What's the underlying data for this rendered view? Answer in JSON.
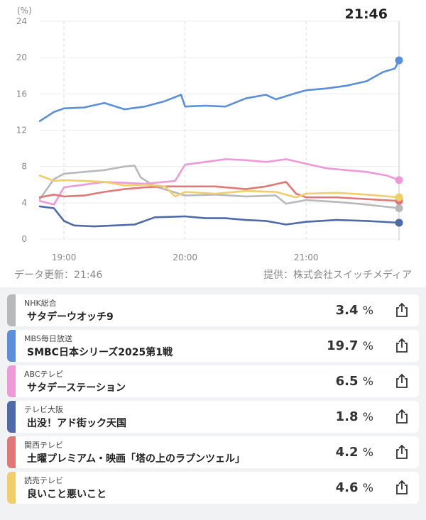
{
  "header": {
    "current_time": "21:46"
  },
  "footer": {
    "updated": "データ更新：21:46",
    "provider": "提供：株式会社スイッチメディア"
  },
  "chart_data": {
    "type": "line",
    "unit_label": "(%)",
    "ylim": [
      0,
      24
    ],
    "y_ticks": [
      0,
      4,
      8,
      12,
      16,
      20,
      24
    ],
    "xlim": [
      "18:48",
      "21:46"
    ],
    "x_ticks": [
      "19:00",
      "20:00",
      "21:00"
    ],
    "grid": true,
    "series": [
      {
        "name": "NHK総合",
        "color": "#b8b9bb",
        "points": [
          [
            "18:48",
            4.4
          ],
          [
            "18:55",
            6.6
          ],
          [
            "19:00",
            7.2
          ],
          [
            "19:10",
            7.4
          ],
          [
            "19:20",
            7.6
          ],
          [
            "19:30",
            8.0
          ],
          [
            "19:35",
            8.1
          ],
          [
            "19:38",
            6.8
          ],
          [
            "19:45",
            5.8
          ],
          [
            "20:00",
            4.8
          ],
          [
            "20:15",
            4.9
          ],
          [
            "20:30",
            4.7
          ],
          [
            "20:45",
            4.8
          ],
          [
            "20:50",
            3.9
          ],
          [
            "21:00",
            4.3
          ],
          [
            "21:15",
            4.1
          ],
          [
            "21:30",
            3.8
          ],
          [
            "21:46",
            3.4
          ]
        ]
      },
      {
        "name": "MBS毎日放送",
        "color": "#5b8fd9",
        "points": [
          [
            "18:48",
            13.0
          ],
          [
            "18:55",
            14.0
          ],
          [
            "19:00",
            14.4
          ],
          [
            "19:10",
            14.5
          ],
          [
            "19:20",
            15.0
          ],
          [
            "19:30",
            14.3
          ],
          [
            "19:40",
            14.6
          ],
          [
            "19:50",
            15.2
          ],
          [
            "19:58",
            15.9
          ],
          [
            "20:00",
            14.6
          ],
          [
            "20:10",
            14.7
          ],
          [
            "20:20",
            14.6
          ],
          [
            "20:30",
            15.5
          ],
          [
            "20:40",
            15.9
          ],
          [
            "20:45",
            15.4
          ],
          [
            "20:55",
            16.1
          ],
          [
            "21:00",
            16.4
          ],
          [
            "21:10",
            16.6
          ],
          [
            "21:20",
            16.9
          ],
          [
            "21:30",
            17.4
          ],
          [
            "21:38",
            18.4
          ],
          [
            "21:44",
            18.8
          ],
          [
            "21:46",
            19.7
          ]
        ]
      },
      {
        "name": "ABCテレビ",
        "color": "#ef9ad8",
        "points": [
          [
            "18:48",
            4.2
          ],
          [
            "18:55",
            3.8
          ],
          [
            "19:00",
            5.7
          ],
          [
            "19:10",
            6.0
          ],
          [
            "19:20",
            6.3
          ],
          [
            "19:30",
            6.2
          ],
          [
            "19:40",
            6.1
          ],
          [
            "19:55",
            6.4
          ],
          [
            "20:00",
            8.2
          ],
          [
            "20:10",
            8.5
          ],
          [
            "20:20",
            8.8
          ],
          [
            "20:30",
            8.7
          ],
          [
            "20:40",
            8.5
          ],
          [
            "20:50",
            8.8
          ],
          [
            "21:00",
            8.3
          ],
          [
            "21:10",
            7.8
          ],
          [
            "21:20",
            7.6
          ],
          [
            "21:30",
            7.4
          ],
          [
            "21:40",
            7.0
          ],
          [
            "21:46",
            6.5
          ]
        ]
      },
      {
        "name": "テレビ大阪",
        "color": "#4e6aa8",
        "points": [
          [
            "18:48",
            3.6
          ],
          [
            "18:55",
            3.4
          ],
          [
            "19:00",
            2.0
          ],
          [
            "19:05",
            1.5
          ],
          [
            "19:15",
            1.4
          ],
          [
            "19:25",
            1.5
          ],
          [
            "19:35",
            1.6
          ],
          [
            "19:45",
            2.4
          ],
          [
            "20:00",
            2.5
          ],
          [
            "20:10",
            2.3
          ],
          [
            "20:20",
            2.3
          ],
          [
            "20:30",
            2.1
          ],
          [
            "20:40",
            2.0
          ],
          [
            "20:50",
            1.6
          ],
          [
            "21:00",
            1.9
          ],
          [
            "21:15",
            2.1
          ],
          [
            "21:30",
            2.0
          ],
          [
            "21:46",
            1.8
          ]
        ]
      },
      {
        "name": "関西テレビ",
        "color": "#e17777",
        "points": [
          [
            "18:48",
            4.6
          ],
          [
            "18:55",
            4.9
          ],
          [
            "19:00",
            4.7
          ],
          [
            "19:10",
            4.8
          ],
          [
            "19:20",
            5.2
          ],
          [
            "19:30",
            5.5
          ],
          [
            "19:40",
            5.7
          ],
          [
            "19:50",
            5.8
          ],
          [
            "20:00",
            5.8
          ],
          [
            "20:15",
            5.8
          ],
          [
            "20:30",
            5.5
          ],
          [
            "20:40",
            5.8
          ],
          [
            "20:50",
            6.3
          ],
          [
            "20:55",
            5.0
          ],
          [
            "21:00",
            4.6
          ],
          [
            "21:15",
            4.6
          ],
          [
            "21:30",
            4.4
          ],
          [
            "21:46",
            4.2
          ]
        ]
      },
      {
        "name": "読売テレビ",
        "color": "#f2ce6a",
        "points": [
          [
            "18:48",
            7.0
          ],
          [
            "18:55",
            6.4
          ],
          [
            "19:00",
            6.5
          ],
          [
            "19:10",
            6.4
          ],
          [
            "19:20",
            6.3
          ],
          [
            "19:30",
            5.9
          ],
          [
            "19:40",
            6.0
          ],
          [
            "19:50",
            5.8
          ],
          [
            "19:55",
            4.7
          ],
          [
            "20:00",
            5.2
          ],
          [
            "20:15",
            5.0
          ],
          [
            "20:30",
            5.3
          ],
          [
            "20:45",
            5.2
          ],
          [
            "20:55",
            4.6
          ],
          [
            "21:00",
            5.0
          ],
          [
            "21:15",
            5.1
          ],
          [
            "21:30",
            4.9
          ],
          [
            "21:46",
            4.6
          ]
        ]
      }
    ]
  },
  "channels": [
    {
      "station": "NHK総合",
      "program": "サタデーウオッチ9",
      "rating": "3.4",
      "unit": "%",
      "color": "#b8b9bb",
      "share_icon": "share-icon"
    },
    {
      "station": "MBS毎日放送",
      "program": "SMBC日本シリーズ2025第1戦",
      "rating": "19.7",
      "unit": "%",
      "color": "#5b8fd9",
      "share_icon": "share-icon"
    },
    {
      "station": "ABCテレビ",
      "program": "サタデーステーション",
      "rating": "6.5",
      "unit": "%",
      "color": "#ef9ad8",
      "share_icon": "share-icon"
    },
    {
      "station": "テレビ大阪",
      "program": "出没！アド街ック天国",
      "rating": "1.8",
      "unit": "%",
      "color": "#4e6aa8",
      "share_icon": "share-icon"
    },
    {
      "station": "関西テレビ",
      "program": "土曜プレミアム・映画「塔の上のラプンツェル」",
      "rating": "4.2",
      "unit": "%",
      "color": "#e17777",
      "share_icon": "share-icon"
    },
    {
      "station": "読売テレビ",
      "program": "良いこと悪いこと",
      "rating": "4.6",
      "unit": "%",
      "color": "#f2ce6a",
      "share_icon": "share-icon"
    }
  ]
}
